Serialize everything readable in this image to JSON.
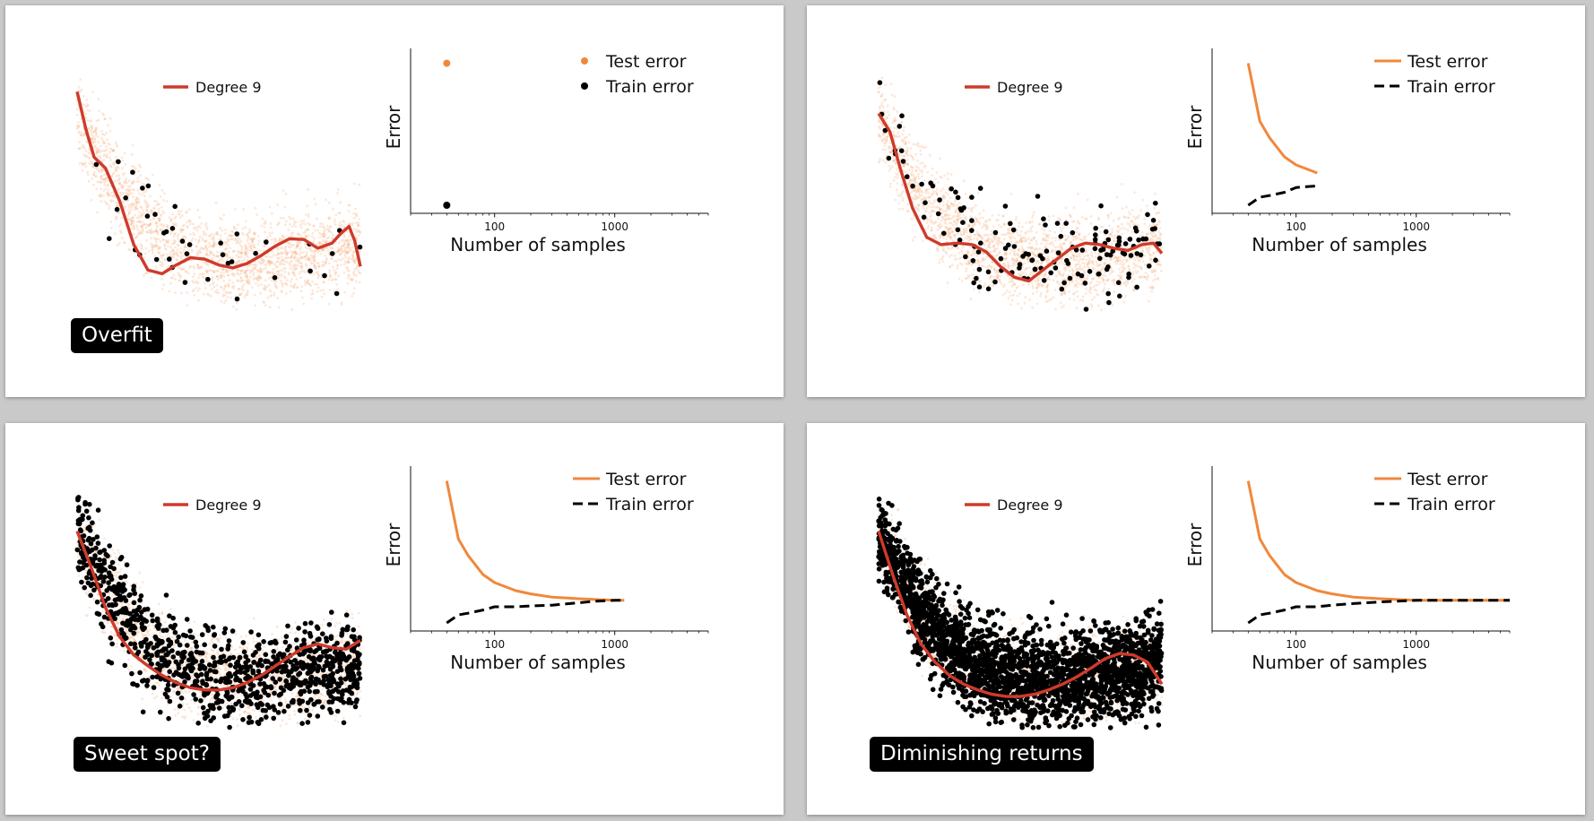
{
  "chart_data": [
    {
      "type": "scatter",
      "panel_label": "Overfit",
      "n_train_points": 40,
      "fit": {
        "type": "line",
        "name": "Degree 9",
        "color": "#cf3a2b",
        "x": [
          0,
          0.03,
          0.06,
          0.1,
          0.15,
          0.2,
          0.25,
          0.3,
          0.35,
          0.4,
          0.45,
          0.5,
          0.55,
          0.6,
          0.65,
          0.7,
          0.75,
          0.8,
          0.85,
          0.9,
          0.93,
          0.96,
          0.98,
          1.0
        ],
        "y": [
          3.0,
          2.5,
          2.1,
          1.95,
          1.5,
          0.9,
          0.55,
          0.5,
          0.62,
          0.72,
          0.7,
          0.62,
          0.58,
          0.64,
          0.75,
          0.88,
          0.98,
          0.97,
          0.85,
          0.92,
          1.05,
          1.15,
          0.95,
          0.6
        ]
      },
      "learning_curve": {
        "type": "line",
        "xlabel": "Number of samples",
        "ylabel": "Error",
        "xscale": "log",
        "xlim": [
          20,
          6000
        ],
        "ylim": [
          0,
          1
        ],
        "xticks": [
          100,
          1000
        ],
        "xticklabels": [
          "100",
          "1000"
        ],
        "legend": {
          "location": "top-right"
        },
        "series": [
          {
            "name": "Test error",
            "color": "#f0883c",
            "style": "point",
            "x": [
              40
            ],
            "y": [
              0.93
            ]
          },
          {
            "name": "Train error",
            "color": "#000000",
            "style": "point",
            "x": [
              40
            ],
            "y": [
              0.05
            ]
          }
        ]
      }
    },
    {
      "type": "scatter",
      "panel_label": "",
      "n_train_points": 150,
      "fit": {
        "type": "line",
        "name": "Degree 9",
        "color": "#cf3a2b",
        "x": [
          0,
          0.04,
          0.08,
          0.12,
          0.17,
          0.22,
          0.28,
          0.33,
          0.38,
          0.43,
          0.48,
          0.53,
          0.58,
          0.63,
          0.68,
          0.73,
          0.78,
          0.83,
          0.88,
          0.93,
          0.97,
          1.0
        ],
        "y": [
          2.7,
          2.45,
          1.9,
          1.4,
          1.0,
          0.9,
          0.92,
          0.9,
          0.8,
          0.6,
          0.45,
          0.4,
          0.55,
          0.7,
          0.85,
          0.92,
          0.9,
          0.85,
          0.82,
          0.9,
          0.92,
          0.78
        ]
      },
      "learning_curve": {
        "type": "line",
        "xlabel": "Number of samples",
        "ylabel": "Error",
        "xscale": "log",
        "xlim": [
          20,
          6000
        ],
        "ylim": [
          0,
          1
        ],
        "xticks": [
          100,
          1000
        ],
        "xticklabels": [
          "100",
          "1000"
        ],
        "legend": {
          "location": "top-right"
        },
        "series": [
          {
            "name": "Test error",
            "color": "#f0883c",
            "style": "solid",
            "x": [
              40,
              50,
              60,
              80,
              100,
              150
            ],
            "y": [
              0.93,
              0.57,
              0.47,
              0.35,
              0.3,
              0.25
            ]
          },
          {
            "name": "Train error",
            "color": "#000000",
            "style": "dashed",
            "x": [
              40,
              50,
              60,
              80,
              100,
              150
            ],
            "y": [
              0.05,
              0.1,
              0.11,
              0.13,
              0.16,
              0.17
            ]
          }
        ]
      }
    },
    {
      "type": "scatter",
      "panel_label": "Sweet spot?",
      "n_train_points": 1000,
      "fit": {
        "type": "line",
        "name": "Degree 9",
        "color": "#cf3a2b",
        "x": [
          0,
          0.05,
          0.1,
          0.15,
          0.2,
          0.25,
          0.3,
          0.35,
          0.4,
          0.45,
          0.5,
          0.55,
          0.6,
          0.65,
          0.7,
          0.75,
          0.8,
          0.85,
          0.9,
          0.95,
          1.0
        ],
        "y": [
          2.7,
          2.2,
          1.65,
          1.25,
          1.0,
          0.85,
          0.72,
          0.62,
          0.55,
          0.52,
          0.52,
          0.55,
          0.62,
          0.72,
          0.85,
          0.98,
          1.1,
          1.15,
          1.1,
          1.08,
          1.2
        ]
      },
      "learning_curve": {
        "type": "line",
        "xlabel": "Number of samples",
        "ylabel": "Error",
        "xscale": "log",
        "xlim": [
          20,
          6000
        ],
        "ylim": [
          0,
          1
        ],
        "xticks": [
          100,
          1000
        ],
        "xticklabels": [
          "100",
          "1000"
        ],
        "legend": {
          "location": "top-right"
        },
        "series": [
          {
            "name": "Test error",
            "color": "#f0883c",
            "style": "solid",
            "x": [
              40,
              50,
              60,
              80,
              100,
              150,
              200,
              300,
              500,
              700,
              1000,
              1200
            ],
            "y": [
              0.93,
              0.57,
              0.47,
              0.35,
              0.3,
              0.25,
              0.23,
              0.21,
              0.2,
              0.195,
              0.19,
              0.19
            ]
          },
          {
            "name": "Train error",
            "color": "#000000",
            "style": "dashed",
            "x": [
              40,
              50,
              60,
              80,
              100,
              150,
              200,
              300,
              500,
              700,
              1000,
              1200
            ],
            "y": [
              0.05,
              0.1,
              0.11,
              0.13,
              0.15,
              0.15,
              0.155,
              0.16,
              0.175,
              0.185,
              0.19,
              0.19
            ]
          }
        ]
      }
    },
    {
      "type": "scatter",
      "panel_label": "Diminishing returns",
      "n_train_points": 2500,
      "fit": {
        "type": "line",
        "name": "Degree 9",
        "color": "#cf3a2b",
        "x": [
          0,
          0.05,
          0.1,
          0.15,
          0.2,
          0.25,
          0.3,
          0.35,
          0.4,
          0.45,
          0.5,
          0.55,
          0.6,
          0.65,
          0.7,
          0.75,
          0.8,
          0.85,
          0.9,
          0.95,
          1.0
        ],
        "y": [
          2.7,
          2.1,
          1.55,
          1.15,
          0.9,
          0.72,
          0.6,
          0.52,
          0.46,
          0.43,
          0.43,
          0.46,
          0.52,
          0.6,
          0.7,
          0.82,
          0.95,
          1.02,
          1.0,
          0.9,
          0.6
        ]
      },
      "learning_curve": {
        "type": "line",
        "xlabel": "Number of samples",
        "ylabel": "Error",
        "xscale": "log",
        "xlim": [
          20,
          6000
        ],
        "ylim": [
          0,
          1
        ],
        "xticks": [
          100,
          1000
        ],
        "xticklabels": [
          "100",
          "1000"
        ],
        "legend": {
          "location": "top-right"
        },
        "series": [
          {
            "name": "Test error",
            "color": "#f0883c",
            "style": "solid",
            "x": [
              40,
              50,
              60,
              80,
              100,
              150,
              200,
              300,
              500,
              1000,
              2000,
              6000
            ],
            "y": [
              0.93,
              0.57,
              0.47,
              0.35,
              0.3,
              0.25,
              0.23,
              0.21,
              0.2,
              0.19,
              0.19,
              0.19
            ]
          },
          {
            "name": "Train error",
            "color": "#000000",
            "style": "dashed",
            "x": [
              40,
              50,
              60,
              80,
              100,
              150,
              200,
              300,
              500,
              1000,
              2000,
              6000
            ],
            "y": [
              0.05,
              0.1,
              0.11,
              0.13,
              0.15,
              0.15,
              0.16,
              0.17,
              0.18,
              0.19,
              0.19,
              0.19
            ]
          }
        ]
      }
    }
  ]
}
